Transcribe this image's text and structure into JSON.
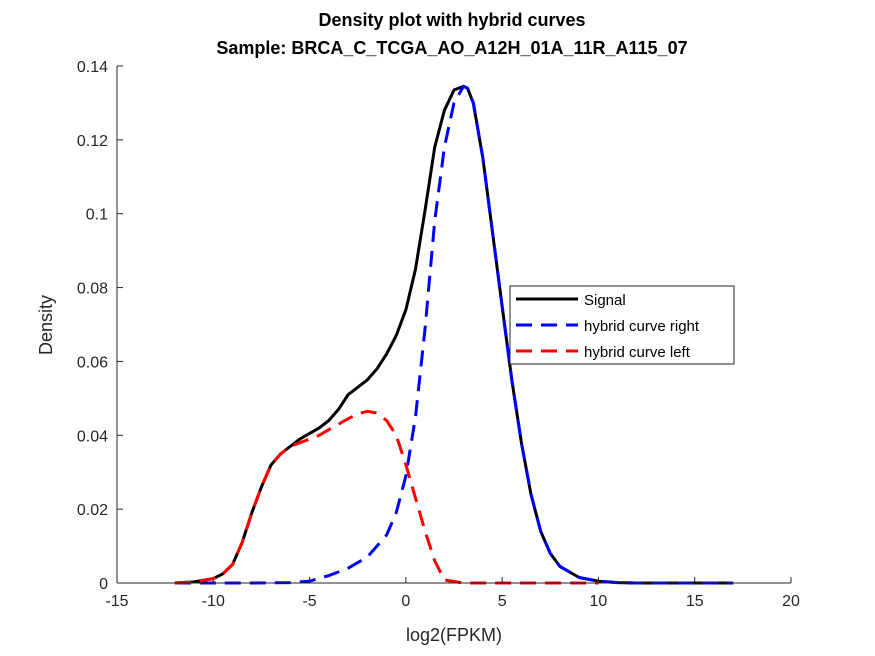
{
  "chart_data": {
    "type": "line",
    "title": "Density plot with hybrid curves",
    "subtitle": "Sample: BRCA_C_TCGA_AO_A12H_01A_11R_A115_07",
    "xlabel": "log2(FPKM)",
    "ylabel": "Density",
    "xlim": [
      -15,
      20
    ],
    "ylim": [
      0,
      0.14
    ],
    "xticks": [
      -15,
      -10,
      -5,
      0,
      5,
      10,
      15,
      20
    ],
    "xtick_labels": [
      "-15",
      "-10",
      "-5",
      "0",
      "5",
      "10",
      "15",
      "20"
    ],
    "yticks": [
      0,
      0.02,
      0.04,
      0.06,
      0.08,
      0.1,
      0.12,
      0.14
    ],
    "ytick_labels": [
      "0",
      "0.02",
      "0.04",
      "0.06",
      "0.08",
      "0.1",
      "0.12",
      "0.14"
    ],
    "grid": false,
    "legend_position": "right",
    "series": [
      {
        "name": "Signal",
        "color": "#000000",
        "style": "solid",
        "x": [
          -12,
          -11,
          -10,
          -9.5,
          -9,
          -8.5,
          -8,
          -7.5,
          -7,
          -6.5,
          -6,
          -5.5,
          -5,
          -4.5,
          -4,
          -3.5,
          -3,
          -2.5,
          -2,
          -1.5,
          -1,
          -0.5,
          0,
          0.5,
          1,
          1.5,
          2,
          2.5,
          3,
          3.2,
          3.5,
          4,
          4.5,
          5,
          5.5,
          6,
          6.5,
          7,
          7.5,
          8,
          9,
          10,
          11,
          12,
          14,
          17
        ],
        "y": [
          0.0,
          0.0003,
          0.0012,
          0.0025,
          0.005,
          0.011,
          0.019,
          0.026,
          0.032,
          0.035,
          0.037,
          0.039,
          0.0405,
          0.042,
          0.044,
          0.047,
          0.051,
          0.053,
          0.055,
          0.058,
          0.062,
          0.067,
          0.074,
          0.085,
          0.101,
          0.118,
          0.128,
          0.1335,
          0.1345,
          0.134,
          0.13,
          0.115,
          0.095,
          0.075,
          0.055,
          0.038,
          0.024,
          0.014,
          0.008,
          0.0045,
          0.0015,
          0.0005,
          0.0001,
          0.0,
          0.0,
          0.0
        ]
      },
      {
        "name": "hybrid curve right",
        "color": "#0000ff",
        "style": "dashed",
        "x": [
          -12,
          -8,
          -6,
          -5,
          -4,
          -3,
          -2,
          -1,
          -0.5,
          0,
          0.5,
          1,
          1.5,
          2,
          2.5,
          3,
          3.2,
          3.5,
          4,
          4.5,
          5,
          5.5,
          6,
          6.5,
          7,
          7.5,
          8,
          9,
          10,
          11,
          12,
          14,
          17
        ],
        "y": [
          0.0,
          0.0,
          0.0001,
          0.0005,
          0.002,
          0.004,
          0.007,
          0.013,
          0.019,
          0.029,
          0.045,
          0.069,
          0.098,
          0.118,
          0.13,
          0.1345,
          0.134,
          0.13,
          0.115,
          0.095,
          0.075,
          0.055,
          0.038,
          0.024,
          0.014,
          0.008,
          0.0045,
          0.0015,
          0.0005,
          0.0001,
          0.0,
          0.0,
          0.0
        ]
      },
      {
        "name": "hybrid curve left",
        "color": "#ff0000",
        "style": "dashed",
        "x": [
          -12,
          -11,
          -10,
          -9.5,
          -9,
          -8.5,
          -8,
          -7.5,
          -7,
          -6.5,
          -6,
          -5.5,
          -5,
          -4.5,
          -4,
          -3.5,
          -3,
          -2.5,
          -2,
          -1.5,
          -1,
          -0.5,
          0,
          0.5,
          1,
          1.5,
          2,
          3,
          5,
          8,
          10
        ],
        "y": [
          0.0,
          0.0003,
          0.0012,
          0.0025,
          0.005,
          0.011,
          0.019,
          0.026,
          0.032,
          0.035,
          0.037,
          0.038,
          0.039,
          0.04,
          0.0415,
          0.043,
          0.0445,
          0.0458,
          0.0465,
          0.046,
          0.044,
          0.04,
          0.032,
          0.023,
          0.014,
          0.006,
          0.0008,
          0.0,
          0.0,
          0.0,
          0.0
        ]
      }
    ]
  }
}
